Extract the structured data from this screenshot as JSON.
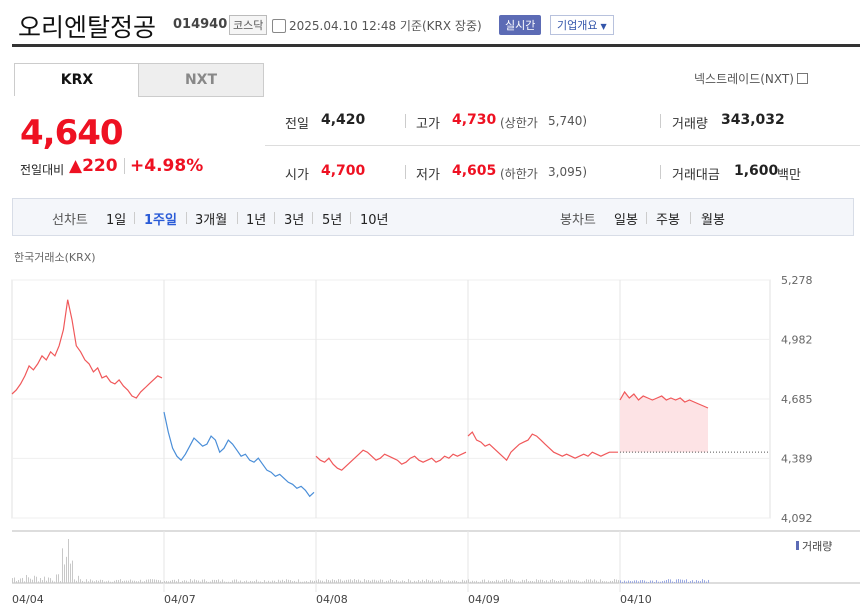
{
  "header": {
    "company_name": "오리엔탈정공",
    "code": "014940",
    "market_badge": "코스닥",
    "timestamp": "2025.04.10 12:48  기준(KRX 장중)",
    "realtime_label": "실시간",
    "company_overview_label": "기업개요"
  },
  "tabs": [
    {
      "label": "KRX",
      "active": true
    },
    {
      "label": "NXT",
      "active": false
    }
  ],
  "nxt_link": "넥스트레이드(NXT)",
  "price": {
    "current": "4,640",
    "change_label": "전일대비",
    "change_arrow": "▲",
    "change": "220",
    "change_pct": "+4.98%"
  },
  "info": {
    "prev_close_label": "전일",
    "prev_close": "4,420",
    "open_label": "시가",
    "open": "4,700",
    "high_label": "고가",
    "high": "4,730",
    "upper_limit_label": "(상한가",
    "upper_limit": "5,740)",
    "low_label": "저가",
    "low": "4,605",
    "lower_limit_label": "(하한가",
    "lower_limit": "3,095)",
    "volume_label": "거래량",
    "volume": "343,032",
    "amount_label": "거래대금",
    "amount": "1,600",
    "amount_unit": "백만"
  },
  "period_bar": {
    "line_chart_label": "선차트",
    "periods": [
      "1일",
      "1주일",
      "3개월",
      "1년",
      "3년",
      "5년",
      "10년"
    ],
    "active_period": "1주일",
    "candle_chart_label": "봉차트",
    "candles": [
      "일봉",
      "주봉",
      "월봉"
    ]
  },
  "chart": {
    "exchange_label": "한국거래소(KRX)",
    "volume_legend": "거래량"
  },
  "chart_data": {
    "type": "line",
    "y_ticks": [
      "5,278",
      "4,982",
      "4,685",
      "4,389",
      "4,092"
    ],
    "ylim": [
      4092,
      5278
    ],
    "x_labels": [
      "04/04",
      "04/07",
      "04/08",
      "04/09",
      "04/10"
    ],
    "prev_close_reference": 4420,
    "colors": {
      "up": "#f0585a",
      "down": "#4a8ed8",
      "today_fill": "#fde3e5",
      "volume": "#c8c8c8"
    },
    "series": [
      {
        "segment": "04/04",
        "color_key": "up",
        "values": [
          4710,
          4730,
          4760,
          4800,
          4850,
          4830,
          4860,
          4900,
          4880,
          4920,
          4900,
          4950,
          5030,
          5180,
          5080,
          4950,
          4920,
          4880,
          4860,
          4820,
          4840,
          4790,
          4800,
          4770,
          4760,
          4780,
          4750,
          4730,
          4700,
          4690,
          4720,
          4740,
          4760,
          4780,
          4800,
          4790
        ]
      },
      {
        "segment": "04/07",
        "color_key": "down",
        "values": [
          4620,
          4520,
          4440,
          4400,
          4380,
          4410,
          4450,
          4490,
          4470,
          4450,
          4460,
          4500,
          4480,
          4420,
          4440,
          4480,
          4460,
          4430,
          4400,
          4410,
          4380,
          4370,
          4390,
          4360,
          4330,
          4320,
          4300,
          4310,
          4290,
          4270,
          4260,
          4240,
          4250,
          4230,
          4200,
          4220
        ]
      },
      {
        "segment": "04/08",
        "color_key": "up",
        "values": [
          4400,
          4380,
          4370,
          4390,
          4360,
          4340,
          4330,
          4350,
          4370,
          4390,
          4410,
          4430,
          4420,
          4400,
          4380,
          4390,
          4410,
          4400,
          4390,
          4380,
          4360,
          4370,
          4390,
          4400,
          4380,
          4370,
          4380,
          4390,
          4370,
          4380,
          4400,
          4390,
          4410,
          4400,
          4410,
          4420
        ]
      },
      {
        "segment": "04/09",
        "color_key": "up",
        "values": [
          4500,
          4520,
          4480,
          4470,
          4450,
          4460,
          4440,
          4420,
          4400,
          4380,
          4420,
          4440,
          4460,
          4470,
          4480,
          4510,
          4500,
          4480,
          4460,
          4440,
          4420,
          4410,
          4400,
          4410,
          4400,
          4390,
          4400,
          4410,
          4400,
          4420,
          4410,
          4400,
          4410,
          4420,
          4420,
          4420
        ]
      },
      {
        "segment": "04/10",
        "color_key": "up",
        "values": [
          4680,
          4720,
          4690,
          4710,
          4680,
          4700,
          4690,
          4680,
          4690,
          4700,
          4680,
          4690,
          4680,
          4690,
          4670,
          4680,
          4670,
          4660,
          4650,
          4640
        ]
      }
    ],
    "volume_spike": {
      "segment": "04/04",
      "relative_height": 0.9
    }
  }
}
